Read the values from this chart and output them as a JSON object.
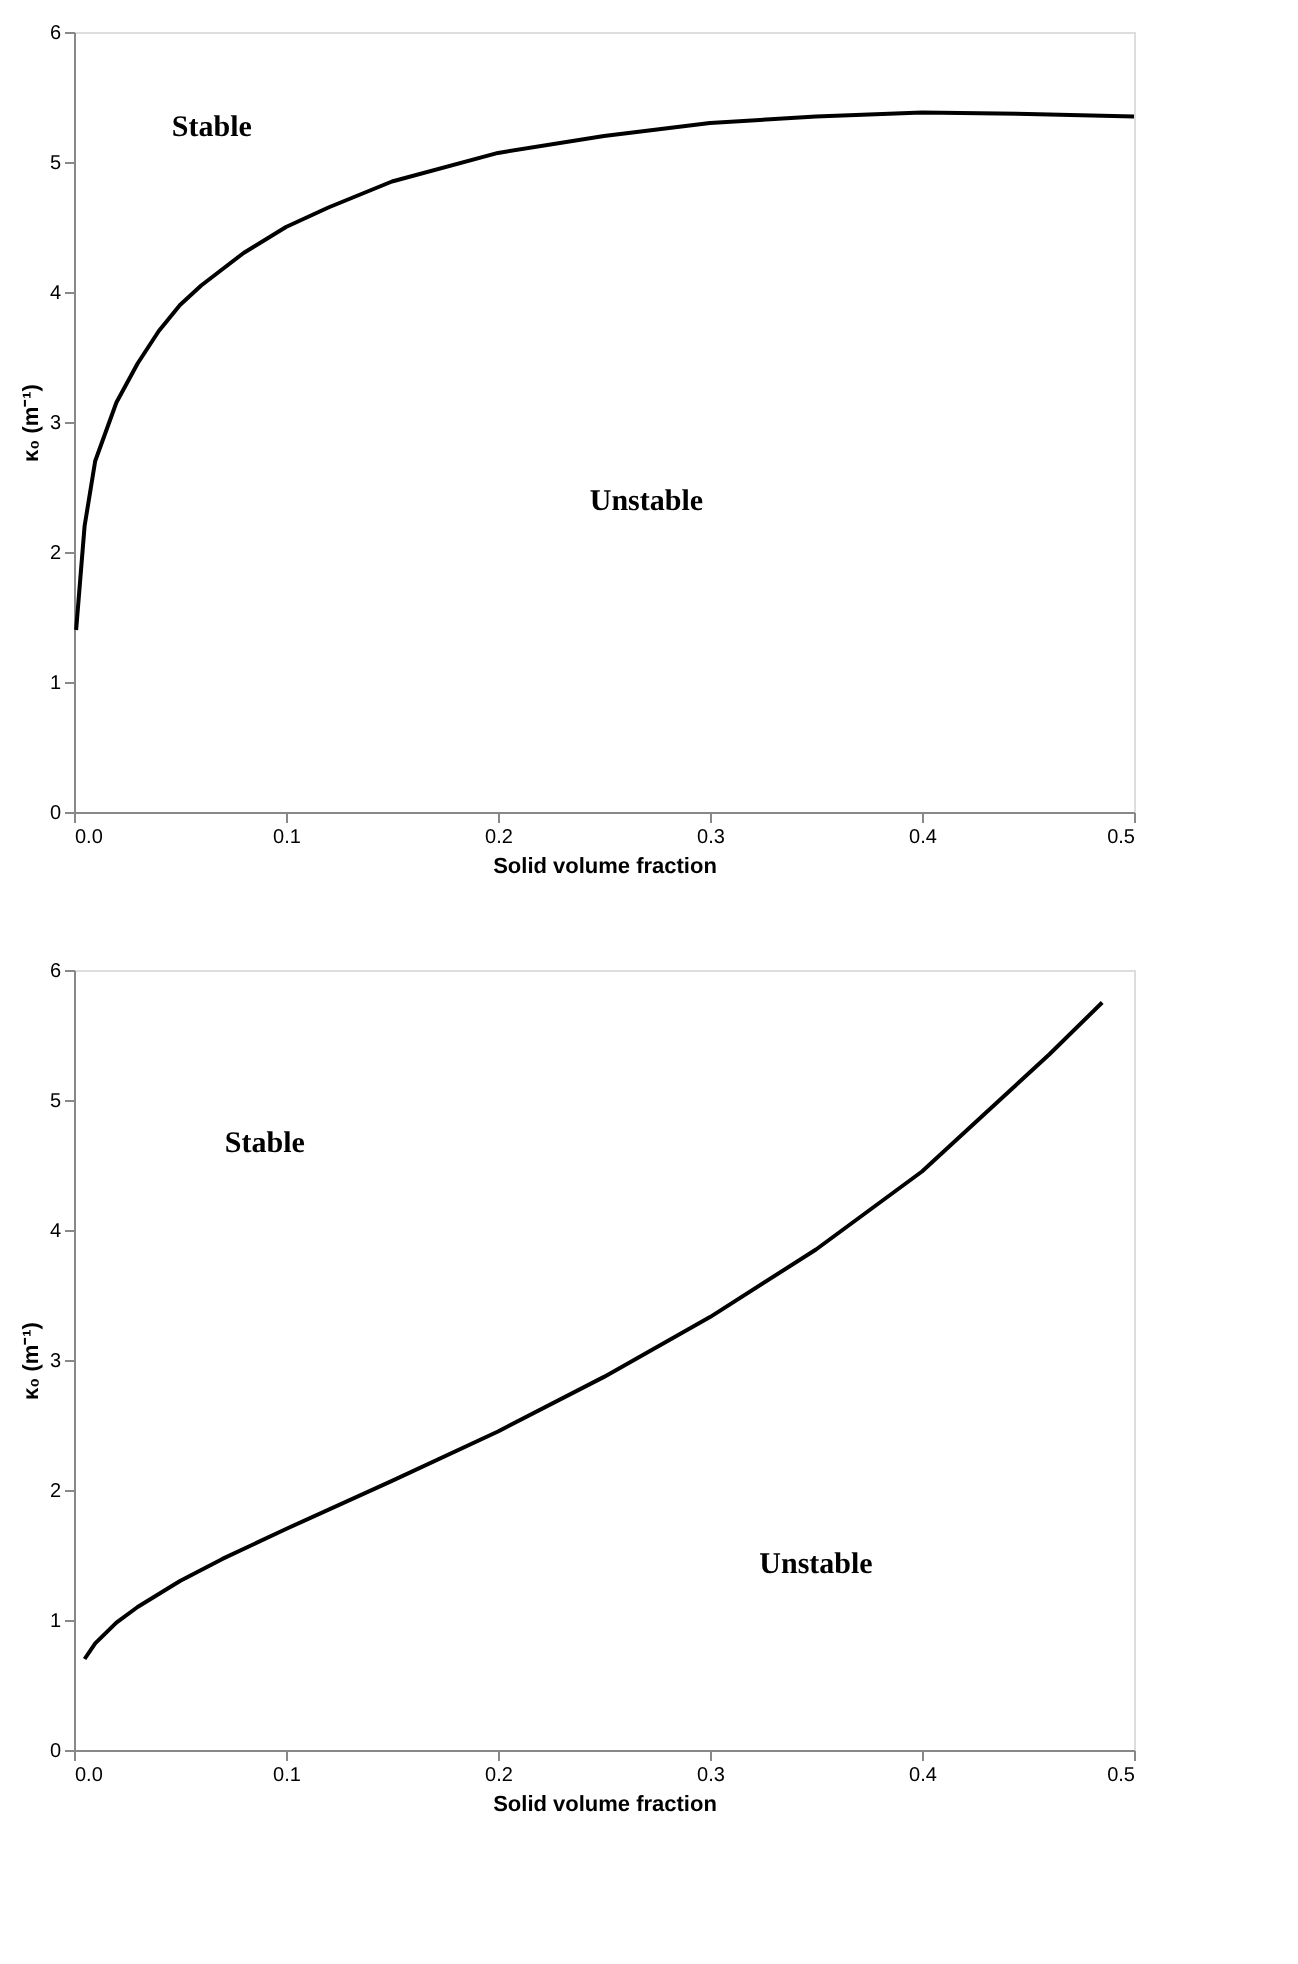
{
  "chart_data": [
    {
      "type": "line",
      "xlabel": "Solid volume fraction",
      "ylabel": "κ₀ (m⁻¹)",
      "xlim": [
        0,
        0.5
      ],
      "ylim": [
        0,
        6
      ],
      "xticks": [
        {
          "value": 0,
          "label": "0.0"
        },
        0.1,
        0.2,
        0.3,
        0.4,
        0.5
      ],
      "yticks": [
        0,
        1,
        2,
        3,
        4,
        5,
        6
      ],
      "grid": false,
      "marker": "none",
      "line_style": "solid",
      "series": [
        {
          "color": "#000000",
          "x": [
            0.001,
            0.005,
            0.01,
            0.02,
            0.03,
            0.04,
            0.05,
            0.06,
            0.08,
            0.1,
            0.12,
            0.15,
            0.2,
            0.25,
            0.3,
            0.35,
            0.4,
            0.45,
            0.5
          ],
          "values": [
            1.4,
            2.2,
            2.7,
            3.15,
            3.45,
            3.7,
            3.9,
            4.05,
            4.3,
            4.5,
            4.65,
            4.85,
            5.07,
            5.2,
            5.3,
            5.35,
            5.38,
            5.37,
            5.35
          ]
        }
      ],
      "annotations": [
        "Stable",
        "Unstable"
      ]
    },
    {
      "type": "line",
      "xlabel": "Solid volume fraction",
      "ylabel": "κ₀ (m⁻¹)",
      "xlim": [
        0,
        0.5
      ],
      "ylim": [
        0,
        6
      ],
      "xticks": [
        {
          "value": 0,
          "label": "0.0"
        },
        0.1,
        0.2,
        0.3,
        0.4,
        0.5
      ],
      "yticks": [
        0,
        1,
        2,
        3,
        4,
        5,
        6
      ],
      "grid": false,
      "marker": "none",
      "line_style": "solid",
      "series": [
        {
          "color": "#000000",
          "x": [
            0.005,
            0.01,
            0.02,
            0.03,
            0.05,
            0.07,
            0.1,
            0.15,
            0.2,
            0.25,
            0.3,
            0.35,
            0.4,
            0.43,
            0.46,
            0.485
          ],
          "values": [
            0.7,
            0.82,
            0.98,
            1.1,
            1.3,
            1.47,
            1.7,
            2.07,
            2.45,
            2.87,
            3.33,
            3.85,
            4.45,
            4.9,
            5.35,
            5.75
          ]
        }
      ],
      "annotations": [
        "Stable",
        "Unstable"
      ]
    }
  ]
}
